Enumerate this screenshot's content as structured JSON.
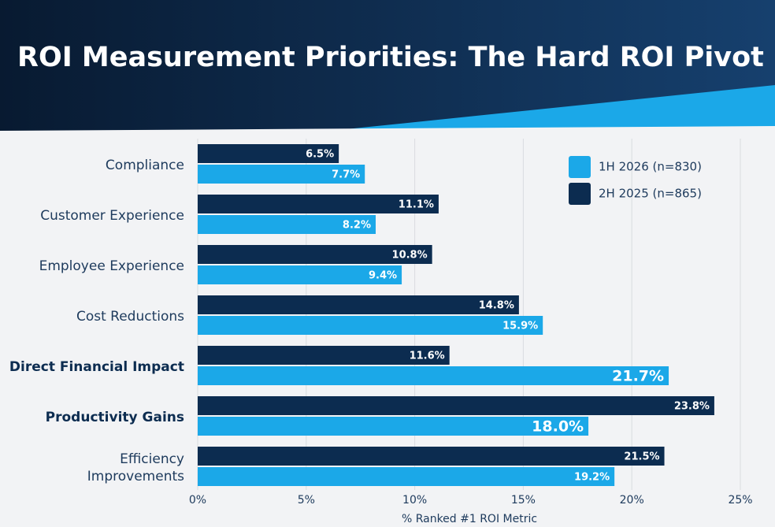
{
  "chart_data": {
    "type": "hbar",
    "title": "ROI Measurement Priorities: The Hard ROI Pivot",
    "x_label": "% Ranked #1 ROI Metric",
    "categories": [
      "Compliance",
      "Customer Experience",
      "Employee Experience",
      "Cost Reductions",
      "Direct Financial Impact",
      "Productivity Gains",
      "Efficiency Improvements"
    ],
    "bold_categories": [
      4,
      5
    ],
    "series": [
      {
        "name": "1H 2026 (n=830)",
        "color": "#1ba8e8",
        "values": [
          7.7,
          8.2,
          9.4,
          15.9,
          21.7,
          18.0,
          19.2
        ],
        "value_labels": [
          "7.7%",
          "8.2%",
          "9.4%",
          "15.9%",
          "21.7%",
          "18.0%",
          "19.2%"
        ]
      },
      {
        "name": "2H 2025 (n=865)",
        "color": "#0c2c50",
        "values": [
          6.5,
          11.1,
          10.8,
          14.8,
          11.6,
          23.8,
          21.5
        ],
        "value_labels": [
          "6.5%",
          "11.1%",
          "10.8%",
          "14.8%",
          "11.6%",
          "23.8%",
          "21.5%"
        ]
      }
    ],
    "xlim": [
      0,
      25
    ],
    "xticks": [
      {
        "value": 0,
        "label": "0%"
      },
      {
        "value": 5,
        "label": "5%"
      },
      {
        "value": 10,
        "label": "10%"
      },
      {
        "value": 15,
        "label": "15%"
      },
      {
        "value": 20,
        "label": "20%"
      },
      {
        "value": 25,
        "label": "25%"
      }
    ],
    "grid": true,
    "legend": "top-right"
  }
}
